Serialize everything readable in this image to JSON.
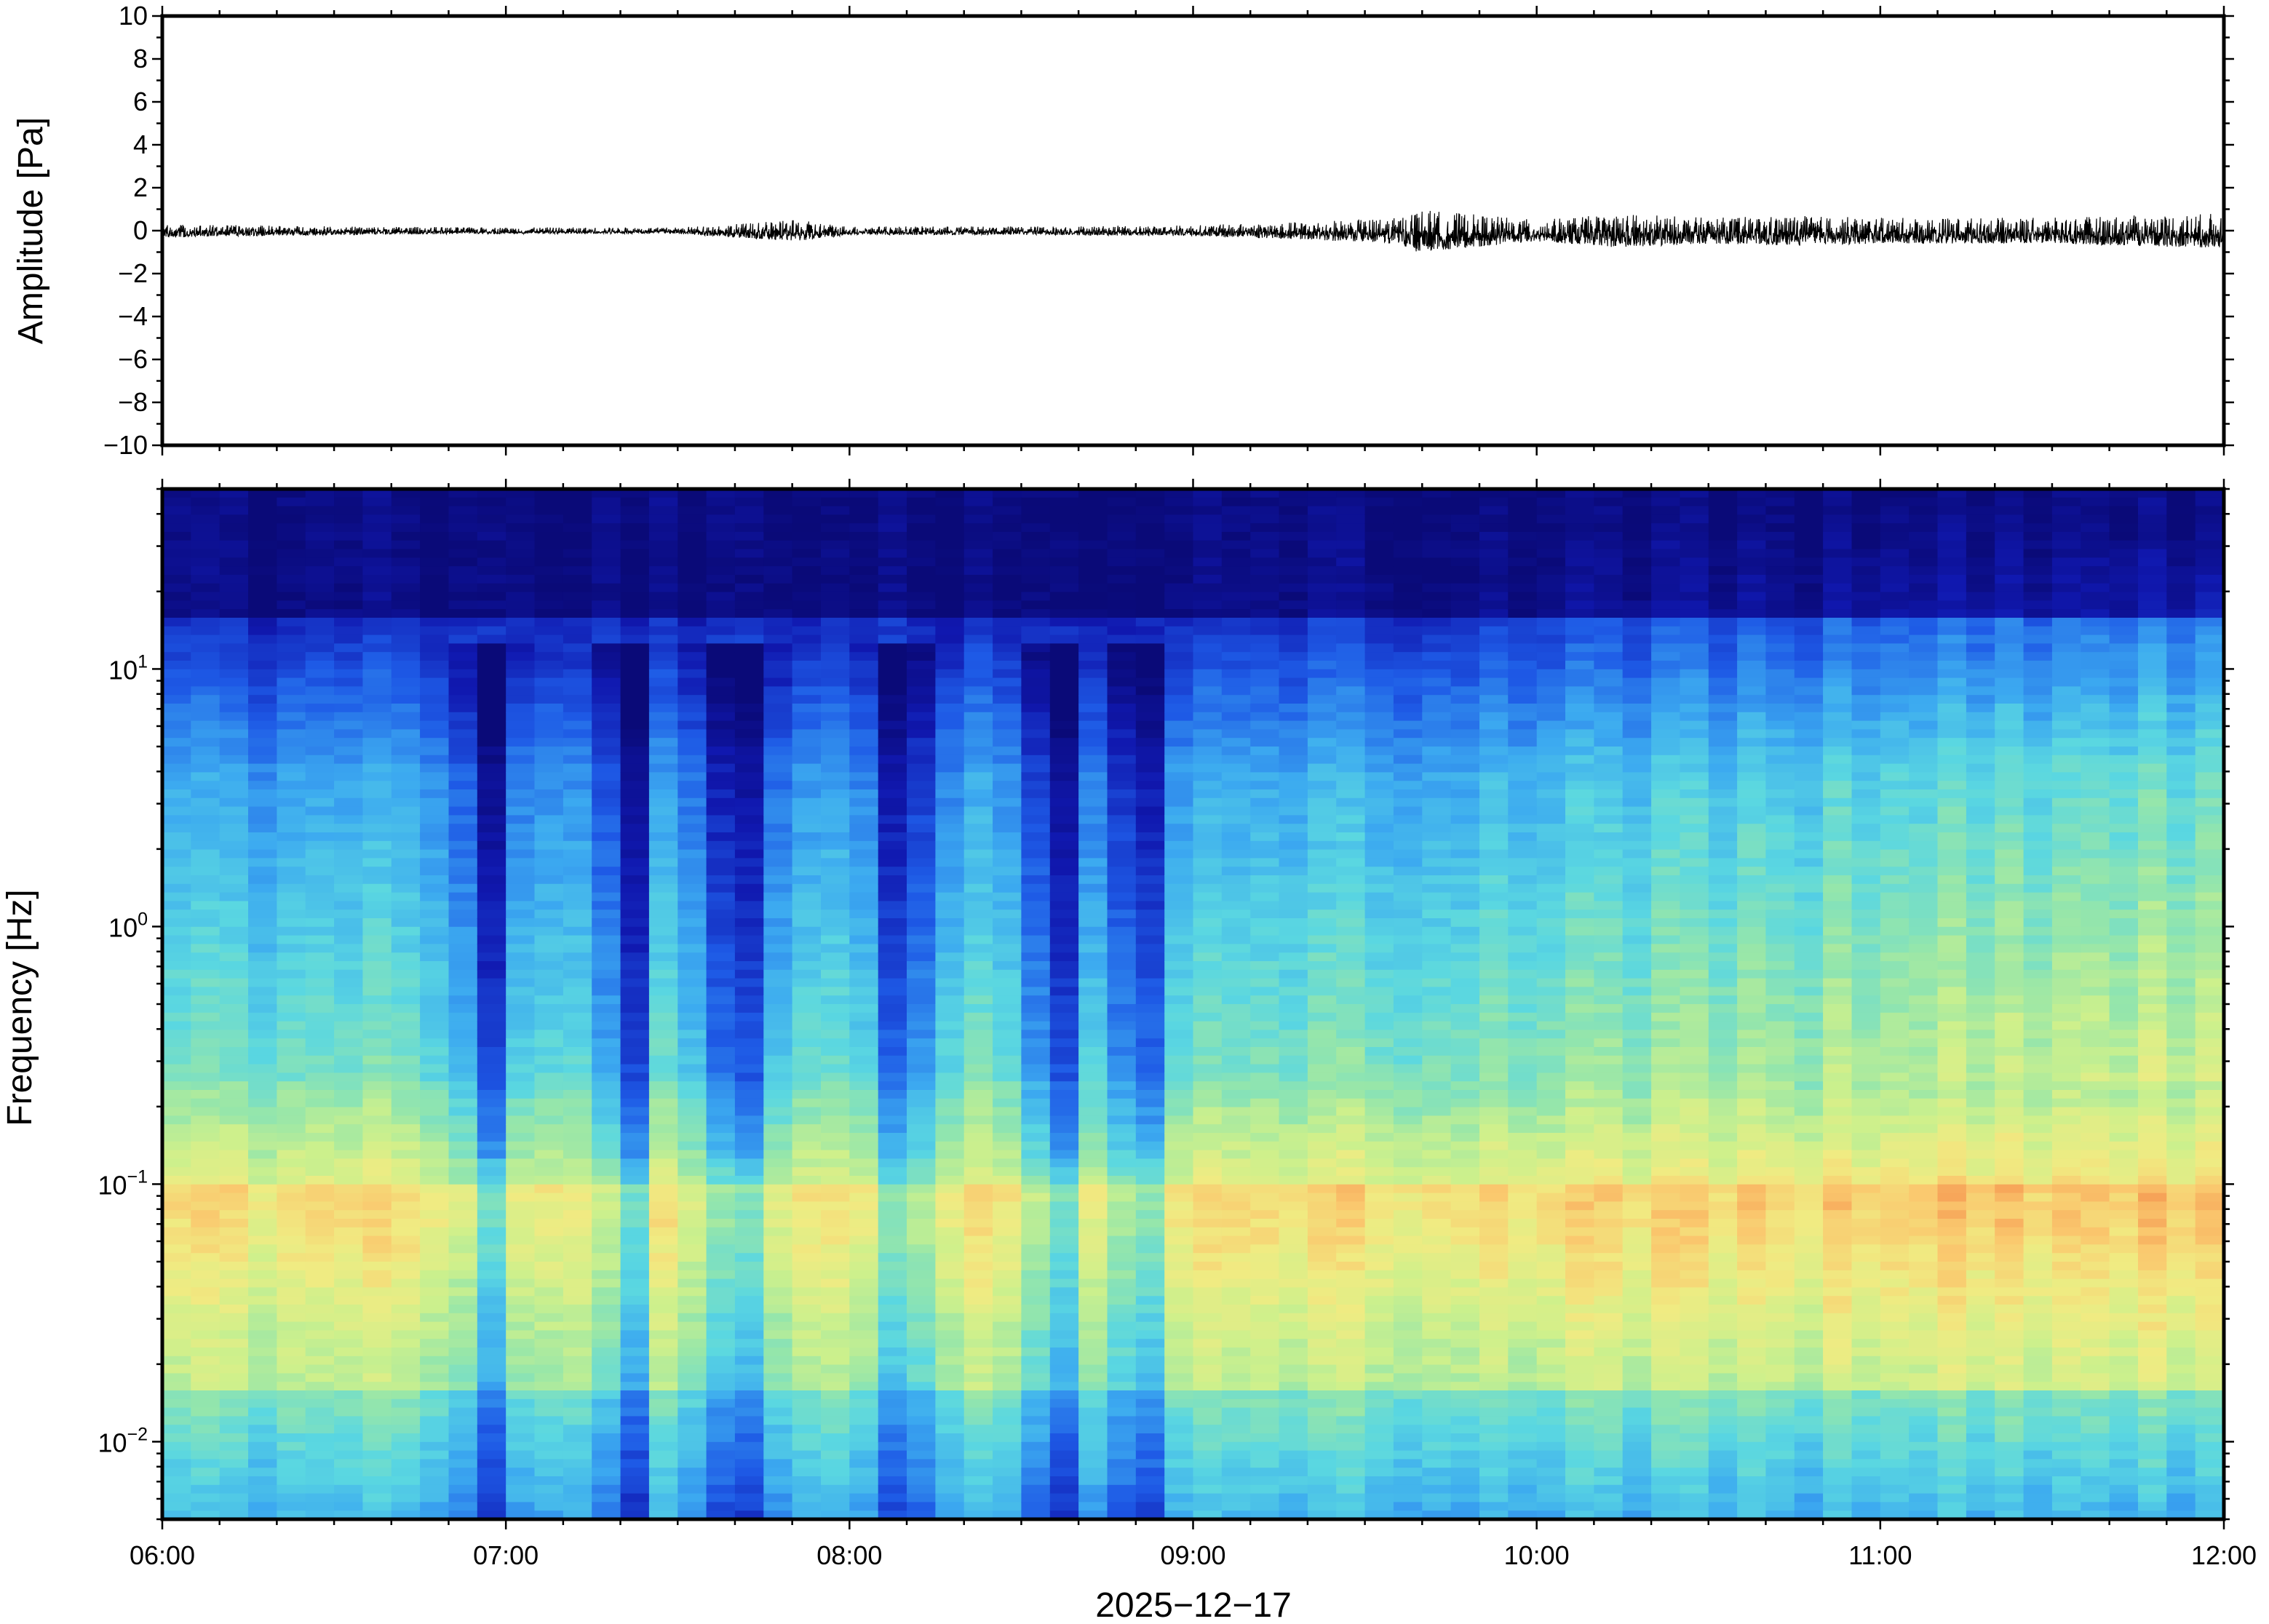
{
  "chart_data": [
    {
      "type": "line",
      "ylabel": "Amplitude [Pa]",
      "ylim": [
        -10,
        10
      ],
      "yticks": [
        "10",
        "8",
        "6",
        "4",
        "2",
        "0",
        "−2",
        "−4",
        "−6",
        "−8",
        "−10"
      ],
      "ytick_values": [
        10,
        8,
        6,
        4,
        2,
        0,
        -2,
        -4,
        -6,
        -8,
        -10
      ],
      "xlim": [
        "06:00",
        "12:00"
      ],
      "grid": false,
      "series": [
        {
          "values_description_free": true,
          "hours": [
            6.0,
            6.5,
            7.0,
            7.5,
            7.85,
            8.0,
            8.5,
            9.0,
            9.3,
            9.6,
            9.65,
            10.0,
            10.25,
            10.5,
            10.75,
            11.0,
            11.5,
            11.95
          ],
          "envelope_pa": [
            0.3,
            0.2,
            0.15,
            0.15,
            0.5,
            0.2,
            0.2,
            0.25,
            0.4,
            0.6,
            1.0,
            0.5,
            0.8,
            0.6,
            0.7,
            0.6,
            0.6,
            0.8
          ]
        }
      ]
    },
    {
      "type": "heatmap",
      "ylabel": "Frequency [Hz]",
      "yscale": "log",
      "ylim": [
        0.005,
        50
      ],
      "yticks": [
        {
          "base": "10",
          "exp": "1",
          "value": 10
        },
        {
          "base": "10",
          "exp": "0",
          "value": 1
        },
        {
          "base": "10",
          "exp": "−1",
          "value": 0.1
        },
        {
          "base": "10",
          "exp": "−2",
          "value": 0.01
        }
      ],
      "xlabel": "2025−12−17",
      "xticks": [
        "06:00",
        "07:00",
        "08:00",
        "09:00",
        "10:00",
        "11:00",
        "12:00"
      ],
      "xtick_hours": [
        6,
        7,
        8,
        9,
        10,
        11,
        12
      ],
      "colormap": "jet",
      "quiet_periods_hours": [
        [
          6.9,
          7.0
        ],
        [
          7.3,
          7.4
        ],
        [
          7.6,
          7.75
        ],
        [
          8.1,
          8.2
        ],
        [
          8.55,
          8.65
        ],
        [
          8.8,
          8.88
        ]
      ],
      "loud_bands_hz": [
        0.01,
        0.1
      ],
      "grid": false
    }
  ],
  "colors": {
    "frame": "#000000",
    "trace": "#000000",
    "background": "#ffffff"
  }
}
